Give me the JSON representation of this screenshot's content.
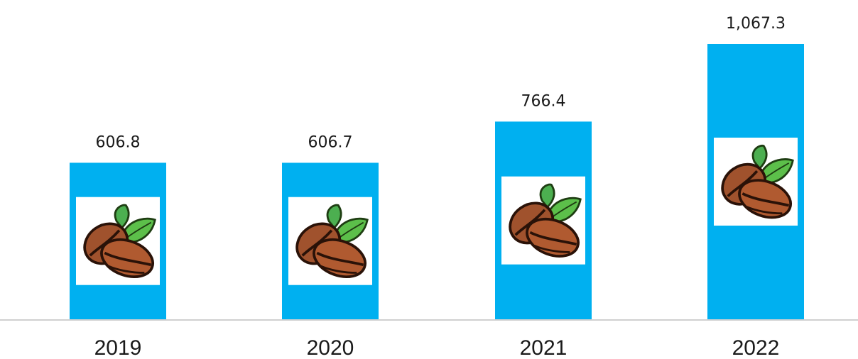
{
  "chart_data": {
    "type": "bar",
    "categories": [
      "2019",
      "2020",
      "2021",
      "2022"
    ],
    "values": [
      606.8,
      606.7,
      766.4,
      1067.3
    ],
    "value_labels": [
      "606.8",
      "606.7",
      "766.4",
      "1,067.3"
    ],
    "title": "",
    "xlabel": "",
    "ylabel": "",
    "ylim": [
      0,
      1067.3
    ],
    "grid": false,
    "legend": "none",
    "colors": {
      "bar": "#00B0F0",
      "axis": "#d0d0d0",
      "icon_panel": "#ffffff",
      "bean_fill": "#a0522d",
      "bean_stroke": "#2a1208",
      "leaf_fill": "#4caf50"
    },
    "bar_icon": "coffee-beans-icon"
  }
}
